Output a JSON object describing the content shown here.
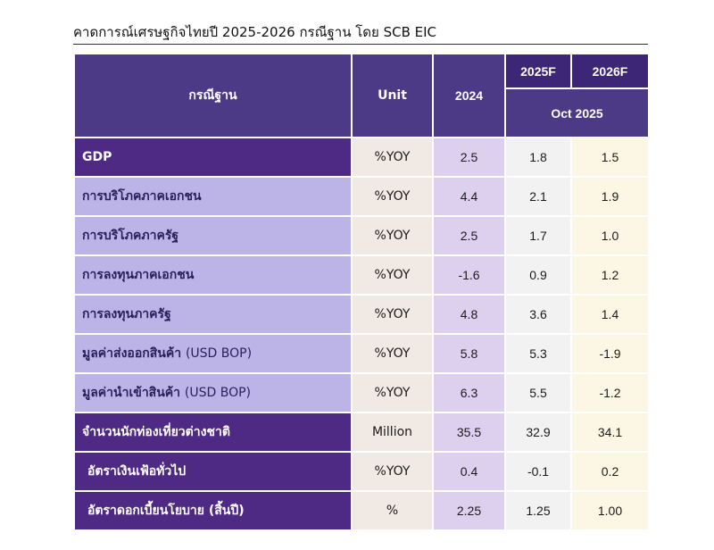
{
  "title": "คาดการณ์เศรษฐกิจไทยปี 2025-2026 กรณีฐาน โดย SCB EIC",
  "header": {
    "scenario": "กรณีฐาน",
    "unit": "Unit",
    "year_2024": "2024",
    "year_2025": "2025F",
    "year_2026": "2026F",
    "forecast_date": "Oct 2025"
  },
  "rows": [
    {
      "label": "GDP",
      "unit": "%YOY",
      "y2024": "2.5",
      "y2025": "1.8",
      "y2026": "1.5"
    },
    {
      "label": "การบริโภคภาคเอกชน",
      "unit": "%YOY",
      "y2024": "4.4",
      "y2025": "2.1",
      "y2026": "1.9"
    },
    {
      "label": "การบริโภคภาครัฐ",
      "unit": "%YOY",
      "y2024": "2.5",
      "y2025": "1.7",
      "y2026": "1.0"
    },
    {
      "label": "การลงทุนภาคเอกชน",
      "unit": "%YOY",
      "y2024": "-1.6",
      "y2025": "0.9",
      "y2026": "1.2"
    },
    {
      "label": "การลงทุนภาครัฐ",
      "unit": "%YOY",
      "y2024": "4.8",
      "y2025": "3.6",
      "y2026": "1.4"
    },
    {
      "label": "มูลค่าส่งออกสินค้า",
      "label_suffix": "(USD BOP)",
      "unit": "%YOY",
      "y2024": "5.8",
      "y2025": "5.3",
      "y2026": "-1.9"
    },
    {
      "label": "มูลค่านำเข้าสินค้า",
      "label_suffix": "(USD BOP)",
      "unit": "%YOY",
      "y2024": "6.3",
      "y2025": "5.5",
      "y2026": "-1.2"
    },
    {
      "label": "จำนวนนักท่องเที่ยวต่างชาติ",
      "unit": "Million",
      "y2024": "35.5",
      "y2025": "32.9",
      "y2026": "34.1"
    },
    {
      "label": "อัตราเงินเฟ้อทั่วไป",
      "unit": "%YOY",
      "y2024": "0.4",
      "y2025": "-0.1",
      "y2026": "0.2"
    },
    {
      "label": "อัตราดอกเบี้ยนโยบาย (สิ้นปี)",
      "unit": "%",
      "y2024": "2.25",
      "y2025": "1.25",
      "y2026": "1.00"
    }
  ],
  "colors": {
    "header_bg": "#4c3a87",
    "label_light_bg": "#bcb4e6",
    "label_dark_bg": "#4f2a85",
    "unit_col_bg": "#f1e9e4",
    "y2024_col_bg": "#ddd0ee",
    "y2025_col_bg": "#f2f2f2",
    "y2026_col_bg": "#fcf7e4"
  }
}
